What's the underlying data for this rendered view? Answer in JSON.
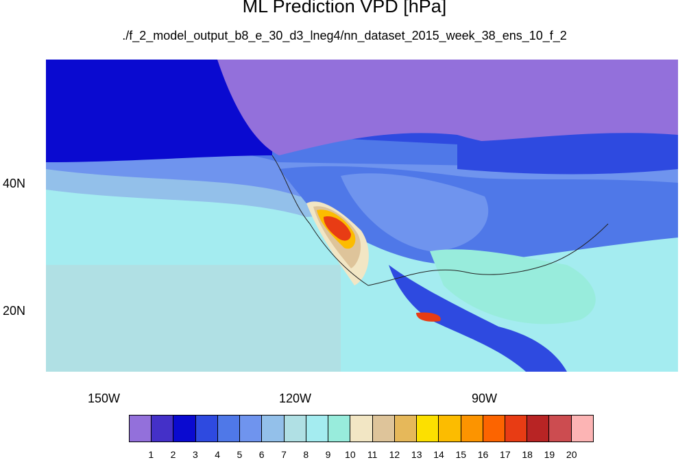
{
  "title": "ML Prediction VPD [hPa]",
  "subtitle": "./f_2_model_output_b8_e_30_d3_lneg4/nn_dataset_2015_week_38_ens_10_f_2",
  "axes": {
    "y_ticks": [
      "40N",
      "20N"
    ],
    "x_ticks": [
      "150W",
      "120W",
      "90W"
    ]
  },
  "legend": {
    "labels": [
      "1",
      "2",
      "3",
      "4",
      "5",
      "6",
      "7",
      "8",
      "9",
      "10",
      "11",
      "12",
      "13",
      "14",
      "15",
      "16",
      "17",
      "18",
      "19",
      "20"
    ],
    "colors": [
      "#9370db",
      "#4430c8",
      "#0a0ad0",
      "#2e4ae0",
      "#4f78e8",
      "#6f94ee",
      "#93c0ea",
      "#b0e0e4",
      "#a4ecf0",
      "#98ecdc",
      "#f2e6c4",
      "#dec49a",
      "#e6b85a",
      "#fce000",
      "#fcbc00",
      "#fc9400",
      "#fc6400",
      "#e83c14",
      "#b82424",
      "#cc4c50",
      "#fcb4b4"
    ]
  },
  "map_colors": {
    "ocean_low": "#a4ecf0",
    "ocean_mid": "#b0e0e4",
    "canada": "#9370db",
    "plains": "#4f78e8",
    "southwest_hot": "#e83c14"
  }
}
